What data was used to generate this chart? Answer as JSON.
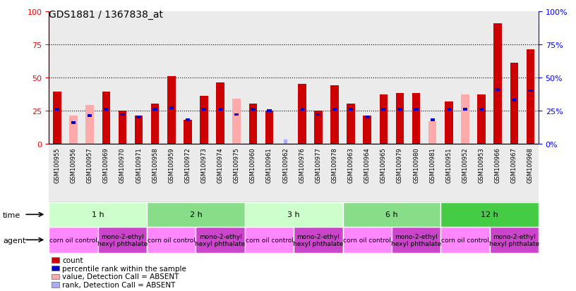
{
  "title": "GDS1881 / 1367838_at",
  "samples": [
    "GSM100955",
    "GSM100956",
    "GSM100957",
    "GSM100969",
    "GSM100970",
    "GSM100971",
    "GSM100958",
    "GSM100959",
    "GSM100972",
    "GSM100973",
    "GSM100974",
    "GSM100975",
    "GSM100960",
    "GSM100961",
    "GSM100962",
    "GSM100976",
    "GSM100977",
    "GSM100978",
    "GSM100963",
    "GSM100964",
    "GSM100965",
    "GSM100979",
    "GSM100980",
    "GSM100981",
    "GSM100951",
    "GSM100952",
    "GSM100953",
    "GSM100966",
    "GSM100967",
    "GSM100968"
  ],
  "count_values": [
    39,
    21,
    29,
    39,
    25,
    21,
    30,
    51,
    18,
    36,
    46,
    34,
    30,
    25,
    4,
    45,
    25,
    44,
    30,
    21,
    37,
    38,
    38,
    17,
    32,
    37,
    37,
    91,
    61,
    71
  ],
  "percentile_values": [
    26,
    16,
    21,
    26,
    22,
    20,
    26,
    27,
    18,
    26,
    26,
    22,
    26,
    25,
    3,
    26,
    22,
    26,
    26,
    20,
    26,
    26,
    26,
    18,
    26,
    26,
    26,
    41,
    33,
    40
  ],
  "absent_count": [
    null,
    21,
    29,
    null,
    null,
    null,
    null,
    null,
    null,
    null,
    null,
    34,
    null,
    null,
    null,
    null,
    null,
    null,
    null,
    null,
    null,
    null,
    null,
    17,
    null,
    37,
    null,
    null,
    null,
    null
  ],
  "absent_rank": [
    null,
    16,
    21,
    null,
    null,
    null,
    null,
    null,
    null,
    null,
    null,
    22,
    null,
    null,
    null,
    null,
    null,
    null,
    null,
    null,
    null,
    null,
    null,
    18,
    null,
    26,
    null,
    null,
    null,
    null
  ],
  "absent_rank_light": [
    null,
    null,
    null,
    null,
    null,
    null,
    null,
    null,
    null,
    null,
    null,
    null,
    null,
    null,
    3,
    null,
    null,
    null,
    null,
    null,
    null,
    null,
    null,
    null,
    null,
    null,
    null,
    null,
    null,
    null
  ],
  "time_groups": [
    {
      "label": "1 h",
      "start": 0,
      "end": 5
    },
    {
      "label": "2 h",
      "start": 6,
      "end": 11
    },
    {
      "label": "3 h",
      "start": 12,
      "end": 17
    },
    {
      "label": "6 h",
      "start": 18,
      "end": 23
    },
    {
      "label": "12 h",
      "start": 24,
      "end": 29
    }
  ],
  "agent_groups": [
    {
      "label": "corn oil control",
      "start": 0,
      "end": 2
    },
    {
      "label": "mono-2-ethyl\nhexyl phthalate",
      "start": 3,
      "end": 5
    },
    {
      "label": "corn oil control",
      "start": 6,
      "end": 8
    },
    {
      "label": "mono-2-ethyl\nhexyl phthalate",
      "start": 9,
      "end": 11
    },
    {
      "label": "corn oil control",
      "start": 12,
      "end": 14
    },
    {
      "label": "mono-2-ethyl\nhexyl phthalate",
      "start": 15,
      "end": 17
    },
    {
      "label": "corn oil control",
      "start": 18,
      "end": 20
    },
    {
      "label": "mono-2-ethyl\nhexyl phthalate",
      "start": 21,
      "end": 23
    },
    {
      "label": "corn oil control",
      "start": 24,
      "end": 26
    },
    {
      "label": "mono-2-ethyl\nhexyl phthalate",
      "start": 27,
      "end": 29
    }
  ],
  "ylim": [
    0,
    100
  ],
  "yticks": [
    0,
    25,
    50,
    75,
    100
  ],
  "bar_color": "#cc0000",
  "percentile_color": "#0000cc",
  "absent_count_color": "#ffaaaa",
  "absent_rank_color": "#aaaaff",
  "time_colors": [
    "#ccffcc",
    "#88dd88",
    "#ccffcc",
    "#88dd88",
    "#44cc44"
  ],
  "agent_color_corn": "#ff88ff",
  "agent_color_mono": "#cc44cc",
  "bar_width": 0.5,
  "tick_fontsize": 6.0,
  "legend_fontsize": 7.5,
  "legend_items": [
    [
      "#cc0000",
      "count"
    ],
    [
      "#0000cc",
      "percentile rank within the sample"
    ],
    [
      "#ffaaaa",
      "value, Detection Call = ABSENT"
    ],
    [
      "#aaaaff",
      "rank, Detection Call = ABSENT"
    ]
  ]
}
